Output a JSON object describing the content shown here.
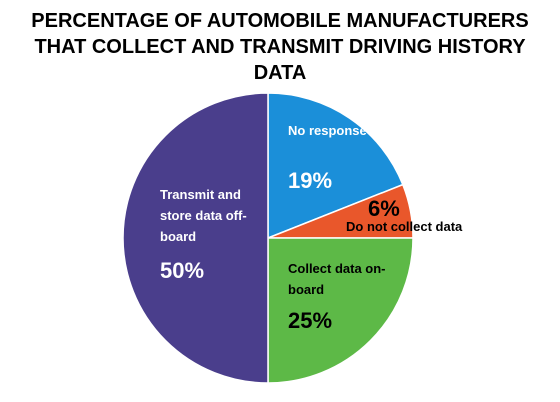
{
  "chart_data": {
    "type": "pie",
    "title": "PERCENTAGE OF AUTOMOBILE MANUFACTURERS THAT COLLECT AND TRANSMIT DRIVING HISTORY DATA",
    "categories": [
      "No response",
      "Do not collect data",
      "Collect data on-board",
      "Transmit and store data off-board"
    ],
    "values": [
      19,
      6,
      25,
      50
    ],
    "value_labels": [
      "19%",
      "6%",
      "25%",
      "50%"
    ],
    "colors": [
      "#1b8fd9",
      "#e9572b",
      "#5db947",
      "#4a3e8c"
    ]
  }
}
